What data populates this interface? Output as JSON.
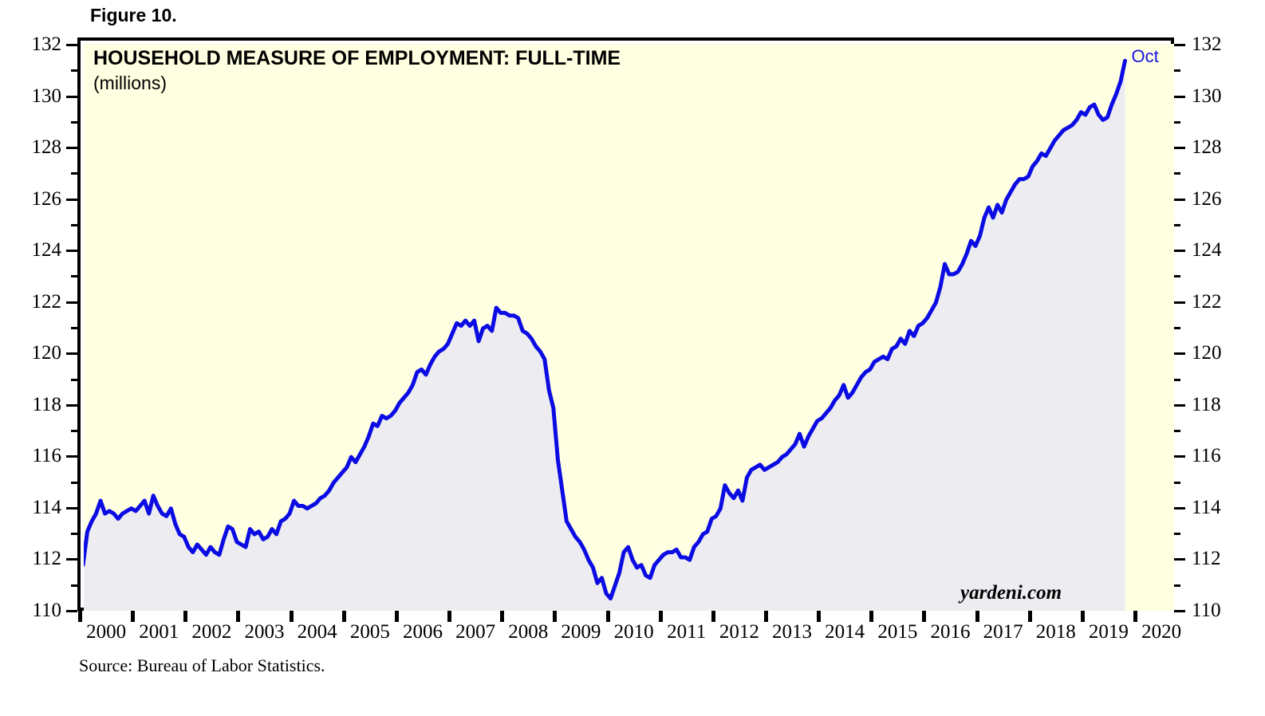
{
  "figure_label": "Figure 10.",
  "chart": {
    "title": "HOUSEHOLD MEASURE OF EMPLOYMENT: FULL-TIME",
    "subtitle": "(millions)",
    "last_point_label": "Oct",
    "watermark": "yardeni.com",
    "source_note": "Source: Bureau of Labor Statistics."
  },
  "colors": {
    "line": "#0b0be4",
    "plot_background": "#ffffe1",
    "fill_under_line": "#ededf1",
    "axis": "#000000",
    "last_point_label_color": "#1414e0"
  },
  "chart_data": {
    "type": "line",
    "title": "HOUSEHOLD MEASURE OF EMPLOYMENT: FULL-TIME",
    "units_label": "(millions)",
    "source": "Source: Bureau of Labor Statistics.",
    "x_start": {
      "year": 2000,
      "month": 1
    },
    "x_end": {
      "year": 2019,
      "month": 10
    },
    "x_axis_year_labels": [
      "2000",
      "2001",
      "2002",
      "2003",
      "2004",
      "2005",
      "2006",
      "2007",
      "2008",
      "2009",
      "2010",
      "2011",
      "2012",
      "2013",
      "2014",
      "2015",
      "2016",
      "2017",
      "2018",
      "2019",
      "2020"
    ],
    "y_tick_labels": [
      110,
      112,
      114,
      116,
      118,
      120,
      122,
      124,
      126,
      128,
      130,
      132
    ],
    "ylim": [
      110,
      132.3
    ],
    "legend": "none",
    "grid": "off",
    "annotation_last_point": "Oct",
    "series_name": "Full-time employment, household survey (millions)",
    "monthly": [
      {
        "year": 2000,
        "values": [
          111.9,
          113.2,
          113.6,
          113.9,
          114.4,
          113.9,
          114.0,
          113.9,
          113.7,
          113.9,
          114.0,
          114.1
        ]
      },
      {
        "year": 2001,
        "values": [
          114.0,
          114.2,
          114.4,
          113.9,
          114.6,
          114.2,
          113.9,
          113.8,
          114.1,
          113.5,
          113.1,
          113.0
        ]
      },
      {
        "year": 2002,
        "values": [
          112.6,
          112.4,
          112.7,
          112.5,
          112.3,
          112.6,
          112.4,
          112.3,
          112.9,
          113.4,
          113.3,
          112.8
        ]
      },
      {
        "year": 2003,
        "values": [
          112.7,
          112.6,
          113.3,
          113.1,
          113.2,
          112.9,
          113.0,
          113.3,
          113.1,
          113.6,
          113.7,
          113.9
        ]
      },
      {
        "year": 2004,
        "values": [
          114.4,
          114.2,
          114.2,
          114.1,
          114.2,
          114.3,
          114.5,
          114.6,
          114.8,
          115.1,
          115.3,
          115.5
        ]
      },
      {
        "year": 2005,
        "values": [
          115.7,
          116.1,
          115.9,
          116.2,
          116.5,
          116.9,
          117.4,
          117.3,
          117.7,
          117.6,
          117.7,
          117.9
        ]
      },
      {
        "year": 2006,
        "values": [
          118.2,
          118.4,
          118.6,
          118.9,
          119.4,
          119.5,
          119.3,
          119.7,
          120.0,
          120.2,
          120.3,
          120.5
        ]
      },
      {
        "year": 2007,
        "values": [
          120.9,
          121.3,
          121.2,
          121.4,
          121.2,
          121.4,
          120.6,
          121.1,
          121.2,
          121.0,
          121.9,
          121.7
        ]
      },
      {
        "year": 2008,
        "values": [
          121.7,
          121.6,
          121.6,
          121.5,
          121.0,
          120.9,
          120.7,
          120.4,
          120.2,
          119.9,
          118.7,
          118.0
        ]
      },
      {
        "year": 2009,
        "values": [
          116.0,
          114.8,
          113.6,
          113.3,
          113.0,
          112.8,
          112.5,
          112.1,
          111.8,
          111.2,
          111.4,
          110.8
        ]
      },
      {
        "year": 2010,
        "values": [
          110.6,
          111.1,
          111.6,
          112.4,
          112.6,
          112.1,
          111.8,
          111.9,
          111.5,
          111.4,
          111.9,
          112.1
        ]
      },
      {
        "year": 2011,
        "values": [
          112.3,
          112.4,
          112.4,
          112.5,
          112.2,
          112.2,
          112.1,
          112.6,
          112.8,
          113.1,
          113.2,
          113.7
        ]
      },
      {
        "year": 2012,
        "values": [
          113.8,
          114.1,
          115.0,
          114.7,
          114.5,
          114.8,
          114.4,
          115.3,
          115.6,
          115.7,
          115.8,
          115.6
        ]
      },
      {
        "year": 2013,
        "values": [
          115.7,
          115.8,
          115.9,
          116.1,
          116.2,
          116.4,
          116.6,
          117.0,
          116.5,
          116.9,
          117.2,
          117.5
        ]
      },
      {
        "year": 2014,
        "values": [
          117.6,
          117.8,
          118.0,
          118.3,
          118.5,
          118.9,
          118.4,
          118.6,
          118.9,
          119.2,
          119.4,
          119.5
        ]
      },
      {
        "year": 2015,
        "values": [
          119.8,
          119.9,
          120.0,
          119.9,
          120.3,
          120.4,
          120.7,
          120.5,
          121.0,
          120.8,
          121.2,
          121.3
        ]
      },
      {
        "year": 2016,
        "values": [
          121.5,
          121.8,
          122.1,
          122.7,
          123.6,
          123.2,
          123.2,
          123.3,
          123.6,
          124.0,
          124.5,
          124.3
        ]
      },
      {
        "year": 2017,
        "values": [
          124.7,
          125.4,
          125.8,
          125.4,
          125.9,
          125.6,
          126.1,
          126.4,
          126.7,
          126.9,
          126.9,
          127.0
        ]
      },
      {
        "year": 2018,
        "values": [
          127.4,
          127.6,
          127.9,
          127.8,
          128.1,
          128.4,
          128.6,
          128.8,
          128.9,
          129.0,
          129.2,
          129.5
        ]
      },
      {
        "year": 2019,
        "values": [
          129.4,
          129.7,
          129.8,
          129.4,
          129.2,
          129.3,
          129.8,
          130.2,
          130.7,
          131.5
        ]
      }
    ]
  }
}
